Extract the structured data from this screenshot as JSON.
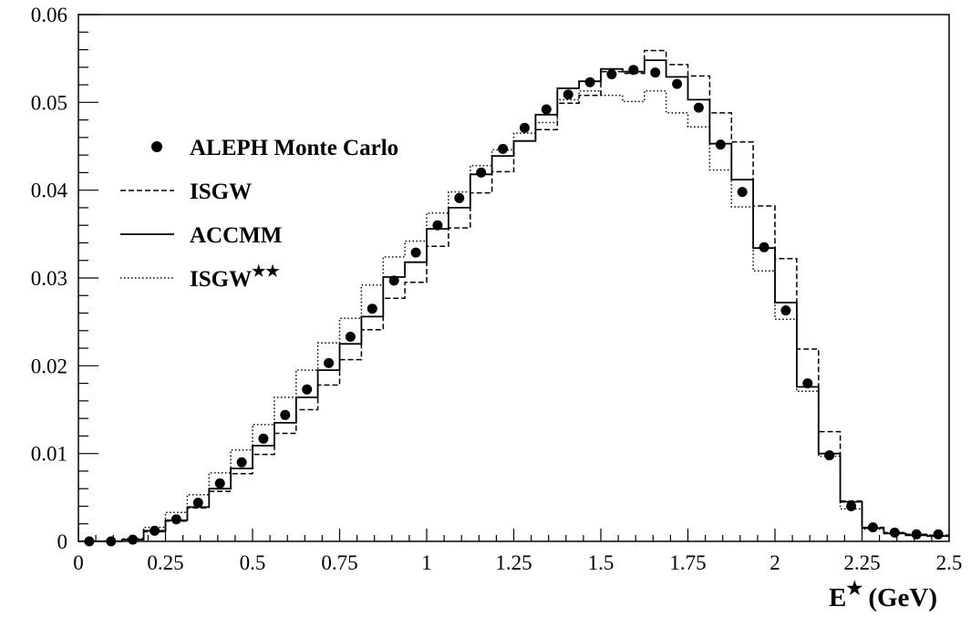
{
  "chart_data": {
    "type": "line",
    "xlabel": "E",
    "xlabel_superscript": "★",
    "xlabel_unit": "(GeV)",
    "ylabel": "",
    "xlim": [
      0,
      2.5
    ],
    "ylim": [
      0,
      0.06
    ],
    "x_ticks": [
      "0",
      "0.25",
      "0.5",
      "0.75",
      "1",
      "1.25",
      "1.5",
      "1.75",
      "2",
      "2.25",
      "2.5"
    ],
    "x_tick_values": [
      0,
      0.25,
      0.5,
      0.75,
      1,
      1.25,
      1.5,
      1.75,
      2,
      2.25,
      2.5
    ],
    "y_ticks": [
      "0",
      "0.01",
      "0.02",
      "0.03",
      "0.04",
      "0.05",
      "0.06"
    ],
    "y_tick_values": [
      0,
      0.01,
      0.02,
      0.03,
      0.04,
      0.05,
      0.06
    ],
    "grid": false,
    "legend_position": "left-middle",
    "bin_edges": [
      0,
      0.0625,
      0.125,
      0.1875,
      0.25,
      0.3125,
      0.375,
      0.4375,
      0.5,
      0.5625,
      0.625,
      0.6875,
      0.75,
      0.8125,
      0.875,
      0.9375,
      1.0,
      1.0625,
      1.125,
      1.1875,
      1.25,
      1.3125,
      1.375,
      1.4375,
      1.5,
      1.5625,
      1.625,
      1.6875,
      1.75,
      1.8125,
      1.875,
      1.9375,
      2.0,
      2.0625,
      2.125,
      2.1875,
      2.25,
      2.3125,
      2.375,
      2.4375,
      2.5
    ],
    "series": [
      {
        "name": "ALEPH Monte Carlo",
        "style": "markers",
        "x": [
          0.03125,
          0.09375,
          0.15625,
          0.21875,
          0.28125,
          0.34375,
          0.40625,
          0.46875,
          0.53125,
          0.59375,
          0.65625,
          0.71875,
          0.78125,
          0.84375,
          0.90625,
          0.96875,
          1.03125,
          1.09375,
          1.15625,
          1.21875,
          1.28125,
          1.34375,
          1.40625,
          1.46875,
          1.53125,
          1.59375,
          1.65625,
          1.71875,
          1.78125,
          1.84375,
          1.90625,
          1.96875,
          2.03125,
          2.09375,
          2.15625,
          2.21875,
          2.28125,
          2.34375,
          2.40625,
          2.46875
        ],
        "values": [
          0.0,
          0.0,
          0.0002,
          0.0012,
          0.0025,
          0.0044,
          0.0066,
          0.009,
          0.0117,
          0.0144,
          0.0173,
          0.0203,
          0.0233,
          0.0265,
          0.0297,
          0.0329,
          0.036,
          0.0391,
          0.042,
          0.0447,
          0.0471,
          0.0492,
          0.0509,
          0.0523,
          0.0532,
          0.0537,
          0.0534,
          0.0521,
          0.0494,
          0.0452,
          0.0398,
          0.0335,
          0.0263,
          0.018,
          0.0098,
          0.004,
          0.0016,
          0.001,
          0.0008,
          0.0008
        ]
      },
      {
        "name": "ISGW",
        "style": "dashed",
        "values": [
          0.0,
          0.0,
          0.0002,
          0.0011,
          0.0023,
          0.0038,
          0.0057,
          0.0077,
          0.0099,
          0.0123,
          0.015,
          0.0178,
          0.0207,
          0.0241,
          0.0277,
          0.0295,
          0.0336,
          0.0357,
          0.0397,
          0.0421,
          0.0456,
          0.0469,
          0.0499,
          0.0508,
          0.0535,
          0.0533,
          0.0559,
          0.0543,
          0.053,
          0.0488,
          0.0455,
          0.0382,
          0.0322,
          0.0219,
          0.0125,
          0.0046,
          0.0016,
          0.001,
          0.0008,
          0.0007
        ]
      },
      {
        "name": "ACCMM",
        "style": "solid",
        "values": [
          0.0,
          0.0,
          0.0002,
          0.0012,
          0.0024,
          0.0039,
          0.006,
          0.0083,
          0.0109,
          0.0135,
          0.0164,
          0.0195,
          0.0225,
          0.0256,
          0.0301,
          0.0318,
          0.0356,
          0.038,
          0.0418,
          0.0439,
          0.0456,
          0.0486,
          0.0516,
          0.0524,
          0.0538,
          0.0535,
          0.0548,
          0.0529,
          0.0503,
          0.0453,
          0.0412,
          0.0334,
          0.0272,
          0.0176,
          0.01,
          0.0045,
          0.0015,
          0.0009,
          0.0007,
          0.0006
        ]
      },
      {
        "name": "ISGW",
        "name_superscript": "★★",
        "style": "dotted",
        "values": [
          0.0,
          0.0,
          0.0003,
          0.0016,
          0.0033,
          0.0053,
          0.0078,
          0.0104,
          0.0133,
          0.0164,
          0.0195,
          0.0226,
          0.0254,
          0.0292,
          0.0324,
          0.0342,
          0.0374,
          0.0398,
          0.0428,
          0.0446,
          0.0465,
          0.0477,
          0.0503,
          0.0513,
          0.0508,
          0.0501,
          0.0513,
          0.0488,
          0.0472,
          0.0423,
          0.0381,
          0.0308,
          0.0253,
          0.0171,
          0.0097,
          0.0037,
          0.0014,
          0.0009,
          0.0007,
          0.0006
        ]
      }
    ]
  }
}
